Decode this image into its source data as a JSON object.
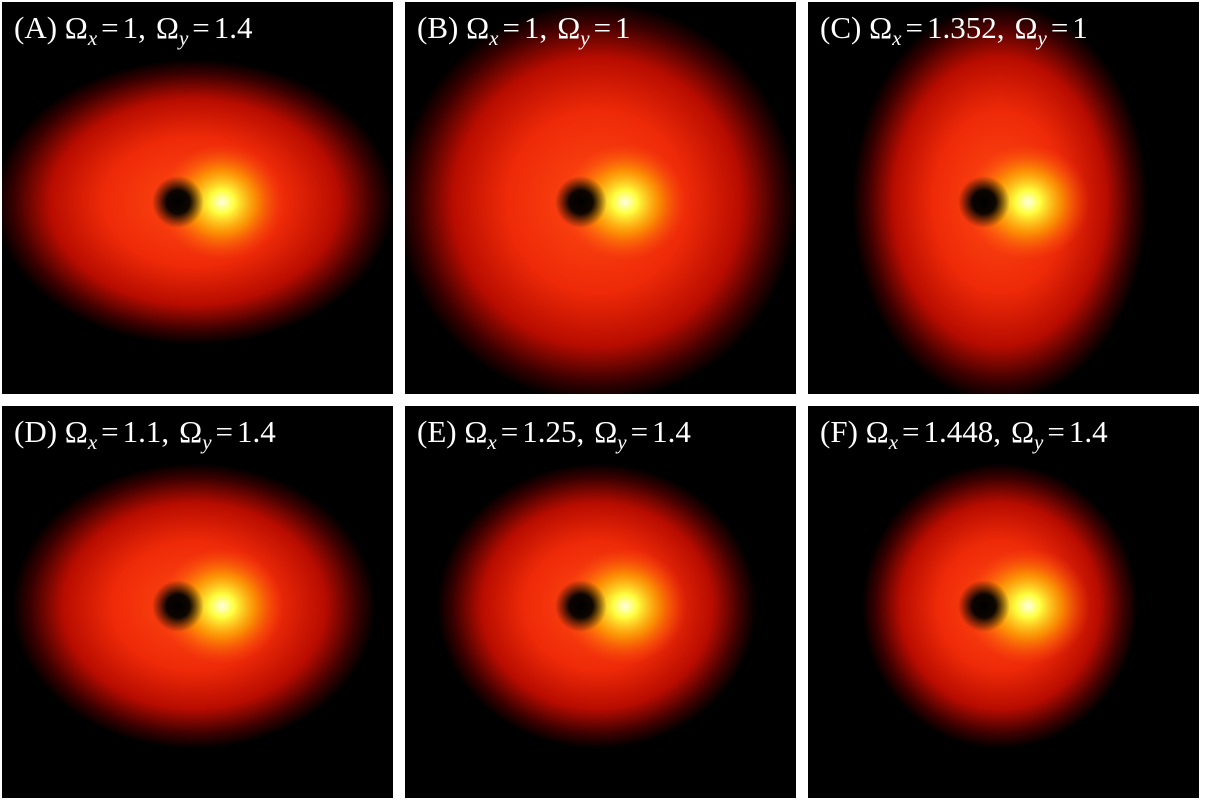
{
  "panels": [
    {
      "letter": "(A)",
      "terms": [
        {
          "symbol": "Ω",
          "subscript": "x",
          "relation": "=",
          "value": 1,
          "separator": ","
        },
        {
          "symbol": "Ω",
          "subscript": "y",
          "relation": "=",
          "value": 1.4
        }
      ]
    },
    {
      "letter": "(B)",
      "terms": [
        {
          "symbol": "Ω",
          "subscript": "x",
          "relation": "=",
          "value": 1,
          "separator": ","
        },
        {
          "symbol": "Ω",
          "subscript": "y",
          "relation": "=",
          "value": 1
        }
      ]
    },
    {
      "letter": "(C)",
      "terms": [
        {
          "symbol": "Ω",
          "subscript": "x",
          "relation": "=",
          "value": 1.352,
          "separator": ","
        },
        {
          "symbol": "Ω",
          "subscript": "y",
          "relation": "=",
          "value": 1
        }
      ]
    },
    {
      "letter": "(D)",
      "terms": [
        {
          "symbol": "Ω",
          "subscript": "x",
          "relation": "=",
          "value": 1.1,
          "separator": ","
        },
        {
          "symbol": "Ω",
          "subscript": "y",
          "relation": "=",
          "value": 1.4
        }
      ]
    },
    {
      "letter": "(E)",
      "terms": [
        {
          "symbol": "Ω",
          "subscript": "x",
          "relation": "=",
          "value": 1.25,
          "separator": ","
        },
        {
          "symbol": "Ω",
          "subscript": "y",
          "relation": "=",
          "value": 1.4
        }
      ]
    },
    {
      "letter": "(F)",
      "terms": [
        {
          "symbol": "Ω",
          "subscript": "x",
          "relation": "=",
          "value": 1.448,
          "separator": ","
        },
        {
          "symbol": "Ω",
          "subscript": "y",
          "relation": "=",
          "value": 1.4
        }
      ]
    }
  ]
}
